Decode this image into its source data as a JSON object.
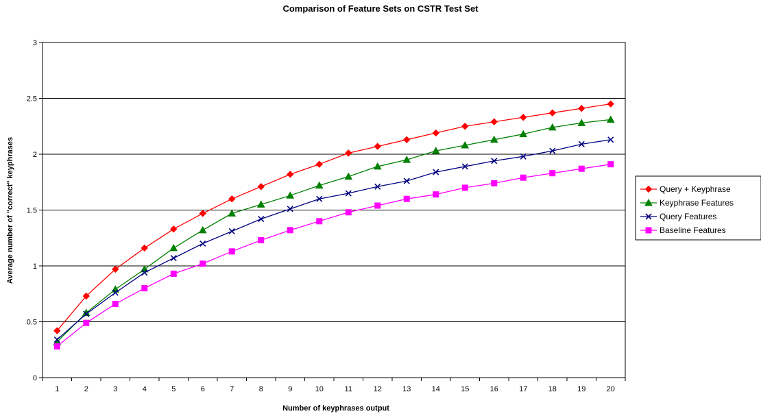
{
  "chart_data": {
    "type": "line",
    "title": "Comparison of Feature Sets on CSTR Test Set",
    "xlabel": "Number of keyphrases output",
    "ylabel": "Average number of \"correct\" keyphrases",
    "categories": [
      "1",
      "2",
      "3",
      "4",
      "5",
      "6",
      "7",
      "8",
      "9",
      "10",
      "11",
      "12",
      "13",
      "14",
      "15",
      "16",
      "17",
      "18",
      "19",
      "20"
    ],
    "ylim": [
      0,
      3
    ],
    "yticks": [
      "0",
      "0.5",
      "1",
      "1.5",
      "2",
      "2.5",
      "3"
    ],
    "grid": "horizontal",
    "legend_position": "right",
    "series": [
      {
        "name": "Query + Keyphrase",
        "color": "#ff0000",
        "marker": "diamond",
        "values": [
          0.42,
          0.73,
          0.97,
          1.16,
          1.33,
          1.47,
          1.6,
          1.71,
          1.82,
          1.91,
          2.01,
          2.07,
          2.13,
          2.19,
          2.25,
          2.29,
          2.33,
          2.37,
          2.41,
          2.45
        ]
      },
      {
        "name": "Keyphrase Features",
        "color": "#008000",
        "marker": "triangle",
        "values": [
          0.32,
          0.58,
          0.79,
          0.97,
          1.16,
          1.32,
          1.47,
          1.55,
          1.63,
          1.72,
          1.8,
          1.89,
          1.95,
          2.03,
          2.08,
          2.13,
          2.18,
          2.24,
          2.28,
          2.31
        ]
      },
      {
        "name": "Query Features",
        "color": "#000080",
        "marker": "x",
        "values": [
          0.34,
          0.57,
          0.76,
          0.94,
          1.07,
          1.2,
          1.31,
          1.42,
          1.51,
          1.6,
          1.65,
          1.71,
          1.76,
          1.84,
          1.89,
          1.94,
          1.98,
          2.03,
          2.09,
          2.13
        ]
      },
      {
        "name": "Baseline Features",
        "color": "#ff00ff",
        "marker": "square",
        "values": [
          0.28,
          0.49,
          0.66,
          0.8,
          0.93,
          1.02,
          1.13,
          1.23,
          1.32,
          1.4,
          1.48,
          1.54,
          1.6,
          1.64,
          1.7,
          1.74,
          1.79,
          1.83,
          1.87,
          1.91
        ]
      }
    ]
  }
}
